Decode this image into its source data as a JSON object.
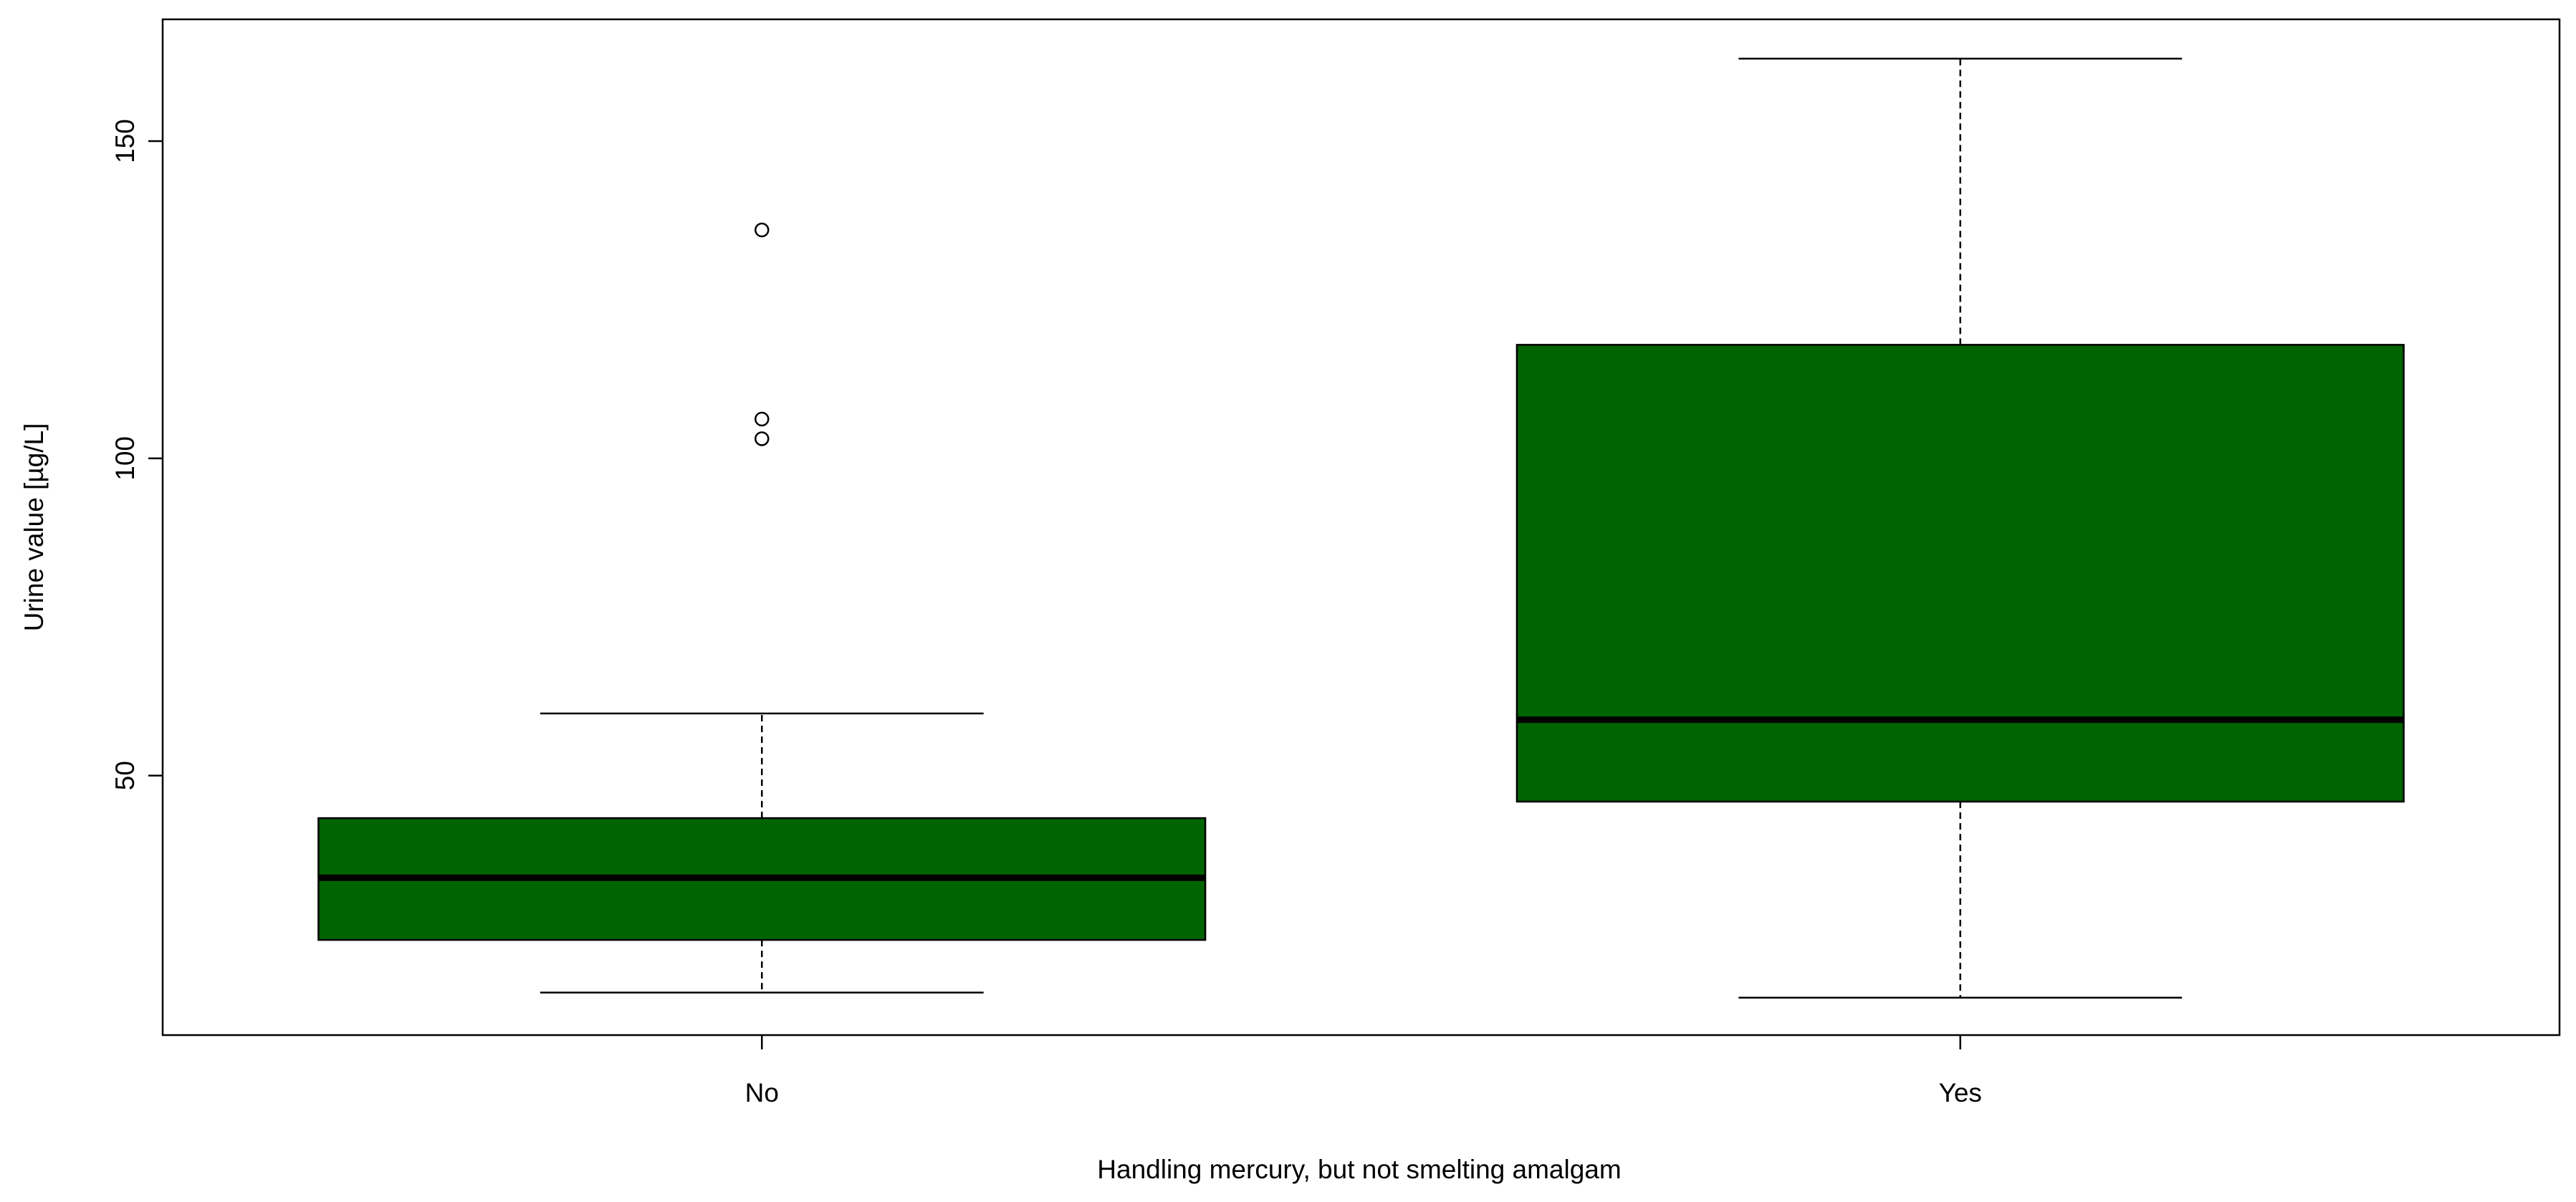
{
  "chart_data": {
    "type": "boxplot",
    "x_label": "Handling mercury, but not smelting amalgam",
    "y_label": "Urine value [µg/L]",
    "categories": [
      "No",
      "Yes"
    ],
    "boxes": [
      {
        "whisker_low": 15.8,
        "q1": 24.1,
        "median": 33.9,
        "q3": 43.3,
        "whisker_high": 59.8,
        "outliers": [
          136,
          106.2,
          103.1
        ]
      },
      {
        "whisker_low": 15,
        "q1": 45.9,
        "median": 58.8,
        "q3": 117.9,
        "whisker_high": 163,
        "outliers": []
      }
    ],
    "color": "#006400",
    "ylim": [
      9.1,
      169.2
    ],
    "yticks": [
      50,
      100,
      150
    ]
  }
}
